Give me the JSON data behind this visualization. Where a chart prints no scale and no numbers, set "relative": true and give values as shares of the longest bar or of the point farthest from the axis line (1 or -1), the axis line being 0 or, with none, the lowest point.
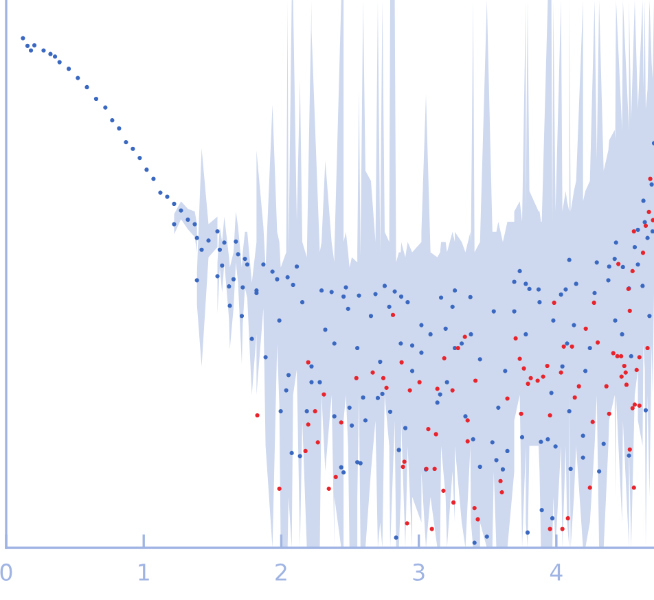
{
  "chart_data": {
    "type": "scatter",
    "relative": true,
    "xlim": [
      0,
      4.71
    ],
    "xticks": [
      0,
      1,
      2,
      3,
      4
    ],
    "marker": "circle",
    "series": [
      {
        "color": "#3a68c0",
        "x": [
          0.122,
          0.155,
          0.18,
          0.205,
          0.272,
          0.322,
          0.355,
          0.388,
          0.455,
          0.521,
          0.587,
          0.654,
          0.721,
          0.771,
          0.821,
          0.871,
          0.921,
          0.971,
          1.021,
          1.071,
          1.121,
          1.171,
          1.221,
          1.221,
          1.271,
          1.321,
          1.371,
          1.387,
          1.387,
          1.421,
          1.471,
          1.536,
          1.536,
          1.553,
          1.57,
          1.586,
          1.62,
          1.626,
          1.653,
          1.67,
          1.686,
          1.713,
          1.72,
          1.736,
          1.753,
          1.786,
          1.82,
          1.82,
          1.87,
          1.886,
          1.936,
          1.97,
          1.986,
          1.996,
          2.036,
          2.046,
          2.053,
          2.076,
          2.086,
          2.113,
          2.136,
          2.153,
          2.186,
          2.22,
          2.22,
          2.28,
          2.293,
          2.32,
          2.366,
          2.386,
          2.386,
          2.436,
          2.453,
          2.453,
          2.47,
          2.486,
          2.496,
          2.513,
          2.553,
          2.553,
          2.565,
          2.576,
          2.595,
          2.612,
          2.652,
          2.685,
          2.702,
          2.719,
          2.735,
          2.752,
          2.785,
          2.792,
          2.825,
          2.835,
          2.855,
          2.869,
          2.872,
          2.902,
          2.919,
          2.952,
          2.952,
          3.019,
          3.019,
          3.052,
          3.085,
          3.135,
          3.155,
          3.162,
          3.195,
          3.205,
          3.245,
          3.262,
          3.262,
          3.312,
          3.339,
          3.375,
          3.379,
          3.395,
          3.405,
          3.445,
          3.445,
          3.495,
          3.535,
          3.545,
          3.564,
          3.578,
          3.611,
          3.628,
          3.644,
          3.694,
          3.694,
          3.734,
          3.751,
          3.778,
          3.778,
          3.791,
          3.804,
          3.871,
          3.878,
          3.888,
          3.894,
          3.938,
          3.964,
          3.971,
          3.978,
          3.994,
          4.034,
          4.044,
          4.068,
          4.078,
          4.094,
          4.094,
          4.104,
          4.128,
          4.144,
          4.194,
          4.194,
          4.211,
          4.244,
          4.278,
          4.294,
          4.311,
          4.344,
          4.378,
          4.384,
          4.424,
          4.428,
          4.434,
          4.478,
          4.484,
          4.528,
          4.528,
          4.544,
          4.57,
          4.593,
          4.593,
          4.627,
          4.633,
          4.643,
          4.65,
          4.663,
          4.677,
          4.693,
          4.7,
          4.71
        ],
        "values": [
          1.0,
          0.985,
          0.976,
          0.986,
          0.976,
          0.969,
          0.964,
          0.953,
          0.94,
          0.922,
          0.904,
          0.881,
          0.864,
          0.839,
          0.823,
          0.796,
          0.783,
          0.765,
          0.742,
          0.724,
          0.697,
          0.689,
          0.675,
          0.635,
          0.662,
          0.644,
          0.635,
          0.608,
          0.525,
          0.585,
          0.603,
          0.621,
          0.533,
          0.585,
          0.554,
          0.599,
          0.513,
          0.475,
          0.527,
          0.601,
          0.576,
          0.455,
          0.511,
          0.567,
          0.556,
          0.41,
          0.505,
          0.5,
          0.556,
          0.374,
          0.542,
          0.527,
          0.446,
          0.268,
          0.309,
          0.531,
          0.339,
          0.186,
          0.516,
          0.552,
          0.18,
          0.482,
          0.268,
          0.325,
          0.356,
          0.325,
          0.505,
          0.428,
          0.502,
          0.258,
          0.401,
          0.158,
          0.148,
          0.493,
          0.511,
          0.469,
          0.275,
          0.24,
          0.168,
          0.392,
          0.495,
          0.166,
          0.295,
          0.25,
          0.455,
          0.498,
          0.294,
          0.365,
          0.302,
          0.514,
          0.473,
          0.267,
          0.503,
          0.02,
          0.192,
          0.401,
          0.493,
          0.235,
          0.482,
          0.347,
          0.397,
          0.383,
          0.437,
          0.154,
          0.419,
          0.285,
          0.301,
          0.491,
          0.43,
          0.325,
          0.473,
          0.392,
          0.505,
          0.401,
          0.258,
          0.492,
          0.419,
          0.213,
          0.01,
          0.159,
          0.37,
          0.022,
          0.207,
          0.464,
          0.172,
          0.275,
          0.154,
          0.347,
          0.19,
          0.464,
          0.522,
          0.543,
          0.217,
          0.518,
          0.419,
          0.03,
          0.508,
          0.507,
          0.482,
          0.208,
          0.074,
          0.213,
          0.304,
          0.058,
          0.446,
          0.199,
          0.497,
          0.356,
          0.507,
          0.401,
          0.268,
          0.565,
          0.155,
          0.437,
          0.518,
          0.22,
          0.177,
          0.347,
          0.392,
          0.5,
          0.56,
          0.15,
          0.204,
          0.525,
          0.552,
          0.567,
          0.446,
          0.599,
          0.419,
          0.551,
          0.181,
          0.509,
          0.376,
          0.59,
          0.624,
          0.556,
          0.514,
          0.681,
          0.639,
          0.27,
          0.608,
          0.455,
          0.713,
          0.621,
          0.794
        ],
        "lower": [
          null,
          null,
          null,
          null,
          null,
          null,
          null,
          null,
          null,
          null,
          null,
          null,
          null,
          null,
          null,
          null,
          null,
          null,
          null,
          null,
          null,
          null,
          null,
          0.615,
          0.645,
          0.625,
          0.61,
          0.58,
          0.477,
          0.356,
          0.57,
          0.59,
          0.46,
          0.55,
          0.5,
          0.56,
          0.45,
          0.39,
          0.47,
          0.56,
          0.52,
          0.36,
          0.44,
          0.51,
          0.49,
          0.3,
          0.42,
          0.3,
          0.47,
          0.2,
          0.0,
          0.4,
          0.28,
          0.0,
          0.0,
          0.0,
          0.1,
          0.0,
          0.3,
          0.35,
          0.0,
          0.25,
          0.0,
          0.0,
          0.0,
          0.0,
          0.3,
          0.15,
          0.3,
          0.0,
          0.1,
          0.0,
          0.0,
          0.25,
          0.3,
          0.2,
          0.0,
          0.0,
          0.0,
          0.1,
          0.3,
          0.0,
          0.0,
          0.0,
          0.15,
          0.25,
          0.0,
          0.05,
          0.0,
          0.3,
          0.2,
          0.0,
          0.25,
          0.0,
          0.0,
          0.1,
          0.25,
          0.0,
          0.2,
          0.0,
          0.1,
          0.05,
          0.15,
          0.0,
          0.1,
          0.0,
          0.0,
          0.2,
          0.1,
          0.0,
          0.15,
          0.05,
          0.2,
          0.05,
          0.0,
          0.2,
          0.05,
          0.0,
          0.0,
          0.0,
          0.05,
          0.0,
          0.0,
          0.15,
          0.0,
          0.0,
          0.0,
          0.0,
          0.0,
          0.15,
          0.25,
          0.3,
          0.0,
          0.2,
          0.05,
          0.0,
          0.2,
          0.2,
          0.15,
          0.0,
          0.0,
          0.0,
          0.0,
          0.0,
          0.1,
          0.0,
          0.2,
          0.0,
          0.2,
          0.05,
          0.0,
          0.3,
          0.0,
          0.1,
          0.2,
          0.0,
          0.0,
          0.0,
          0.05,
          0.2,
          0.3,
          0.0,
          0.0,
          0.2,
          0.25,
          0.3,
          0.1,
          0.3,
          0.05,
          0.25,
          0.0,
          0.2,
          0.0,
          0.3,
          0.35,
          0.25,
          0.2,
          0.4,
          0.35,
          0.0,
          0.3,
          0.1,
          0.4,
          0.3,
          0.5
        ],
        "upper": [
          null,
          null,
          null,
          null,
          null,
          null,
          null,
          null,
          null,
          null,
          null,
          null,
          null,
          null,
          null,
          null,
          null,
          null,
          null,
          null,
          null,
          null,
          null,
          0.655,
          0.68,
          0.665,
          0.66,
          0.635,
          0.54,
          0.784,
          0.635,
          0.65,
          0.56,
          0.63,
          0.6,
          0.65,
          0.57,
          0.55,
          0.58,
          0.66,
          0.63,
          0.55,
          0.58,
          0.62,
          0.62,
          0.52,
          0.6,
          0.78,
          0.63,
          0.55,
          0.87,
          0.62,
          0.6,
          0.55,
          0.58,
          1.075,
          0.58,
          1.075,
          1.075,
          0.64,
          0.92,
          0.6,
          0.57,
          1.075,
          1.015,
          0.58,
          0.6,
          0.76,
          0.6,
          0.56,
          0.58,
          1.075,
          1.075,
          0.6,
          0.62,
          0.58,
          0.55,
          0.57,
          0.56,
          0.58,
          0.9,
          0.57,
          1.075,
          0.74,
          0.72,
          0.6,
          1.075,
          0.58,
          1.075,
          0.62,
          0.6,
          1.075,
          1.075,
          0.56,
          0.58,
          0.58,
          0.6,
          0.57,
          0.6,
          0.58,
          0.58,
          0.6,
          0.62,
          0.89,
          0.58,
          0.57,
          0.58,
          0.6,
          0.6,
          0.58,
          0.62,
          0.6,
          0.62,
          0.6,
          0.58,
          0.62,
          0.6,
          1.075,
          0.58,
          0.6,
          0.6,
          1.075,
          0.62,
          0.62,
          0.62,
          0.64,
          0.6,
          0.62,
          0.64,
          0.64,
          0.66,
          0.68,
          0.64,
          1.075,
          0.66,
          1.075,
          0.7,
          0.66,
          0.66,
          0.64,
          0.64,
          1.075,
          1.075,
          0.64,
          1.075,
          0.66,
          1.075,
          0.66,
          0.7,
          0.68,
          0.66,
          1.075,
          0.66,
          0.7,
          0.72,
          1.075,
          0.68,
          0.7,
          0.72,
          1.075,
          0.76,
          1.075,
          0.74,
          0.78,
          0.8,
          0.82,
          0.8,
          1.075,
          0.82,
          1.075,
          0.82,
          1.075,
          0.84,
          1.075,
          0.86,
          0.86,
          1.075,
          0.9,
          1.075,
          0.86,
          0.9,
          1.075,
          0.95,
          0.92,
          1.075
        ]
      },
      {
        "color": "#e8232b",
        "x": [
          1.826,
          1.986,
          2.176,
          2.196,
          2.196,
          2.246,
          2.266,
          2.31,
          2.346,
          2.396,
          2.436,
          2.546,
          2.665,
          2.742,
          2.765,
          2.812,
          2.875,
          2.885,
          2.895,
          2.915,
          2.935,
          3.005,
          3.055,
          3.069,
          3.095,
          3.115,
          3.125,
          3.135,
          3.179,
          3.185,
          3.245,
          3.252,
          3.285,
          3.335,
          3.355,
          3.355,
          3.405,
          3.412,
          3.429,
          3.594,
          3.604,
          3.644,
          3.704,
          3.734,
          3.744,
          3.764,
          3.794,
          3.814,
          3.864,
          3.904,
          3.934,
          3.954,
          3.954,
          3.984,
          4.034,
          4.044,
          4.054,
          4.084,
          4.114,
          4.134,
          4.164,
          4.214,
          4.244,
          4.264,
          4.274,
          4.301,
          4.364,
          4.384,
          4.414,
          4.444,
          4.451,
          4.471,
          4.474,
          4.494,
          4.504,
          4.51,
          4.524,
          4.534,
          4.534,
          4.554,
          4.554,
          4.564,
          4.564,
          4.57,
          4.584,
          4.604,
          4.604,
          4.63,
          4.65,
          4.663,
          4.673,
          4.683,
          4.703
        ],
        "values": [
          0.26,
          0.116,
          0.19,
          0.364,
          0.242,
          0.268,
          0.207,
          0.301,
          0.116,
          0.139,
          0.246,
          0.333,
          0.344,
          0.333,
          0.314,
          0.457,
          0.364,
          0.159,
          0.169,
          0.048,
          0.309,
          0.325,
          0.155,
          0.233,
          0.037,
          0.155,
          0.223,
          0.312,
          0.112,
          0.372,
          0.309,
          0.089,
          0.392,
          0.414,
          0.25,
          0.209,
          0.078,
          0.328,
          0.056,
          0.131,
          0.109,
          0.293,
          0.411,
          0.371,
          0.263,
          0.352,
          0.322,
          0.333,
          0.328,
          0.336,
          0.357,
          0.26,
          0.037,
          0.481,
          0.344,
          0.037,
          0.395,
          0.058,
          0.395,
          0.295,
          0.317,
          0.43,
          0.118,
          0.247,
          0.481,
          0.403,
          0.317,
          0.263,
          0.382,
          0.376,
          0.557,
          0.376,
          0.336,
          0.357,
          0.344,
          0.32,
          0.508,
          0.193,
          0.465,
          0.274,
          0.543,
          0.118,
          0.621,
          0.281,
          0.349,
          0.279,
          0.374,
          0.579,
          0.632,
          0.392,
          0.659,
          0.724,
          0.643
        ]
      }
    ]
  }
}
